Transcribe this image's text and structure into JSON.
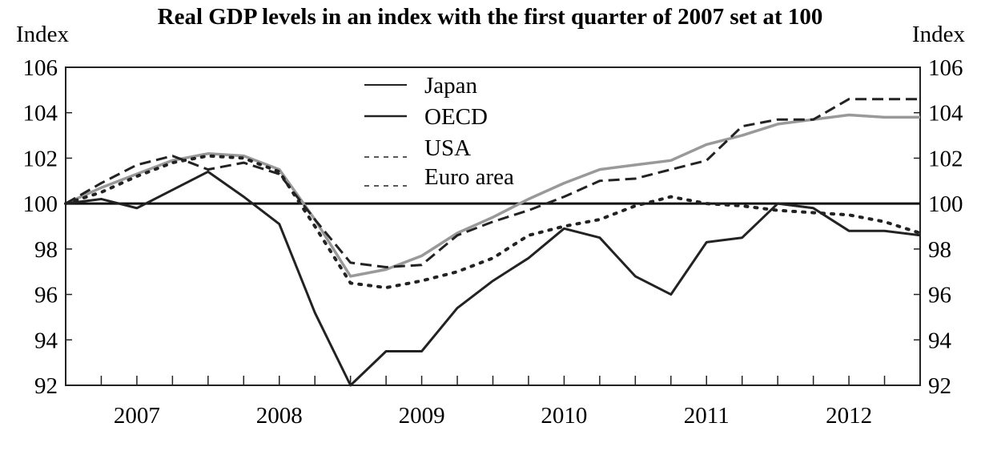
{
  "chart_data": {
    "type": "line",
    "title": "Real GDP levels in an index with the first quarter of 2007 set at  100",
    "ylabel_left": "Index",
    "ylabel_right": "Index",
    "ylim": [
      92,
      106
    ],
    "yticks": [
      92,
      94,
      96,
      98,
      100,
      102,
      104,
      106
    ],
    "xlim": [
      2006.5,
      2012.5
    ],
    "xticks": [
      "2007",
      "2008",
      "2009",
      "2010",
      "2011",
      "2012"
    ],
    "reference_line": 100,
    "legend": [
      "Japan",
      "OECD",
      "USA",
      "Euro area"
    ],
    "series": [
      {
        "name": "Japan",
        "style": "solid",
        "color": "#222222",
        "x": [
          2006.5,
          2006.75,
          2007.0,
          2007.25,
          2007.5,
          2007.75,
          2008.0,
          2008.25,
          2008.5,
          2008.75,
          2009.0,
          2009.25,
          2009.5,
          2009.75,
          2010.0,
          2010.25,
          2010.5,
          2010.75,
          2011.0,
          2011.25,
          2011.5,
          2011.75,
          2012.0,
          2012.25,
          2012.5
        ],
        "values": [
          100.0,
          100.2,
          99.8,
          100.6,
          101.4,
          100.3,
          99.1,
          95.2,
          92.0,
          93.5,
          93.5,
          95.4,
          96.6,
          97.6,
          98.9,
          98.5,
          96.8,
          96.0,
          98.3,
          98.5,
          100.0,
          99.8,
          98.8,
          98.8,
          98.6
        ]
      },
      {
        "name": "OECD",
        "style": "solid",
        "color": "#999999",
        "x": [
          2006.5,
          2006.75,
          2007.0,
          2007.25,
          2007.5,
          2007.75,
          2008.0,
          2008.25,
          2008.5,
          2008.75,
          2009.0,
          2009.25,
          2009.5,
          2009.75,
          2010.0,
          2010.25,
          2010.5,
          2010.75,
          2011.0,
          2011.25,
          2011.5,
          2011.75,
          2012.0,
          2012.25,
          2012.5
        ],
        "values": [
          100.0,
          100.7,
          101.3,
          101.9,
          102.2,
          102.1,
          101.5,
          99.3,
          96.8,
          97.1,
          97.7,
          98.7,
          99.4,
          100.2,
          100.9,
          101.5,
          101.7,
          101.9,
          102.6,
          103.0,
          103.5,
          103.7,
          103.9,
          103.8,
          103.8
        ]
      },
      {
        "name": "USA",
        "style": "dashed",
        "color": "#222222",
        "x": [
          2006.5,
          2006.75,
          2007.0,
          2007.25,
          2007.5,
          2007.75,
          2008.0,
          2008.25,
          2008.5,
          2008.75,
          2009.0,
          2009.25,
          2009.5,
          2009.75,
          2010.0,
          2010.25,
          2010.5,
          2010.75,
          2011.0,
          2011.25,
          2011.5,
          2011.75,
          2012.0,
          2012.25,
          2012.5
        ],
        "values": [
          100.0,
          100.9,
          101.7,
          102.1,
          101.5,
          101.8,
          101.3,
          99.3,
          97.4,
          97.2,
          97.3,
          98.6,
          99.2,
          99.7,
          100.3,
          101.0,
          101.1,
          101.5,
          101.9,
          103.4,
          103.7,
          103.7,
          104.6,
          104.6,
          104.6
        ]
      },
      {
        "name": "Euro area",
        "style": "dotted",
        "color": "#222222",
        "x": [
          2006.5,
          2006.75,
          2007.0,
          2007.25,
          2007.5,
          2007.75,
          2008.0,
          2008.25,
          2008.5,
          2008.75,
          2009.0,
          2009.25,
          2009.5,
          2009.75,
          2010.0,
          2010.25,
          2010.5,
          2010.75,
          2011.0,
          2011.25,
          2011.5,
          2011.75,
          2012.0,
          2012.25,
          2012.5
        ],
        "values": [
          100.0,
          100.5,
          101.2,
          101.8,
          102.1,
          102.0,
          101.4,
          99.0,
          96.5,
          96.3,
          96.6,
          97.0,
          97.6,
          98.6,
          99.0,
          99.3,
          99.9,
          100.3,
          100.0,
          99.9,
          99.7,
          99.6,
          99.5,
          99.2,
          98.7
        ]
      }
    ]
  }
}
